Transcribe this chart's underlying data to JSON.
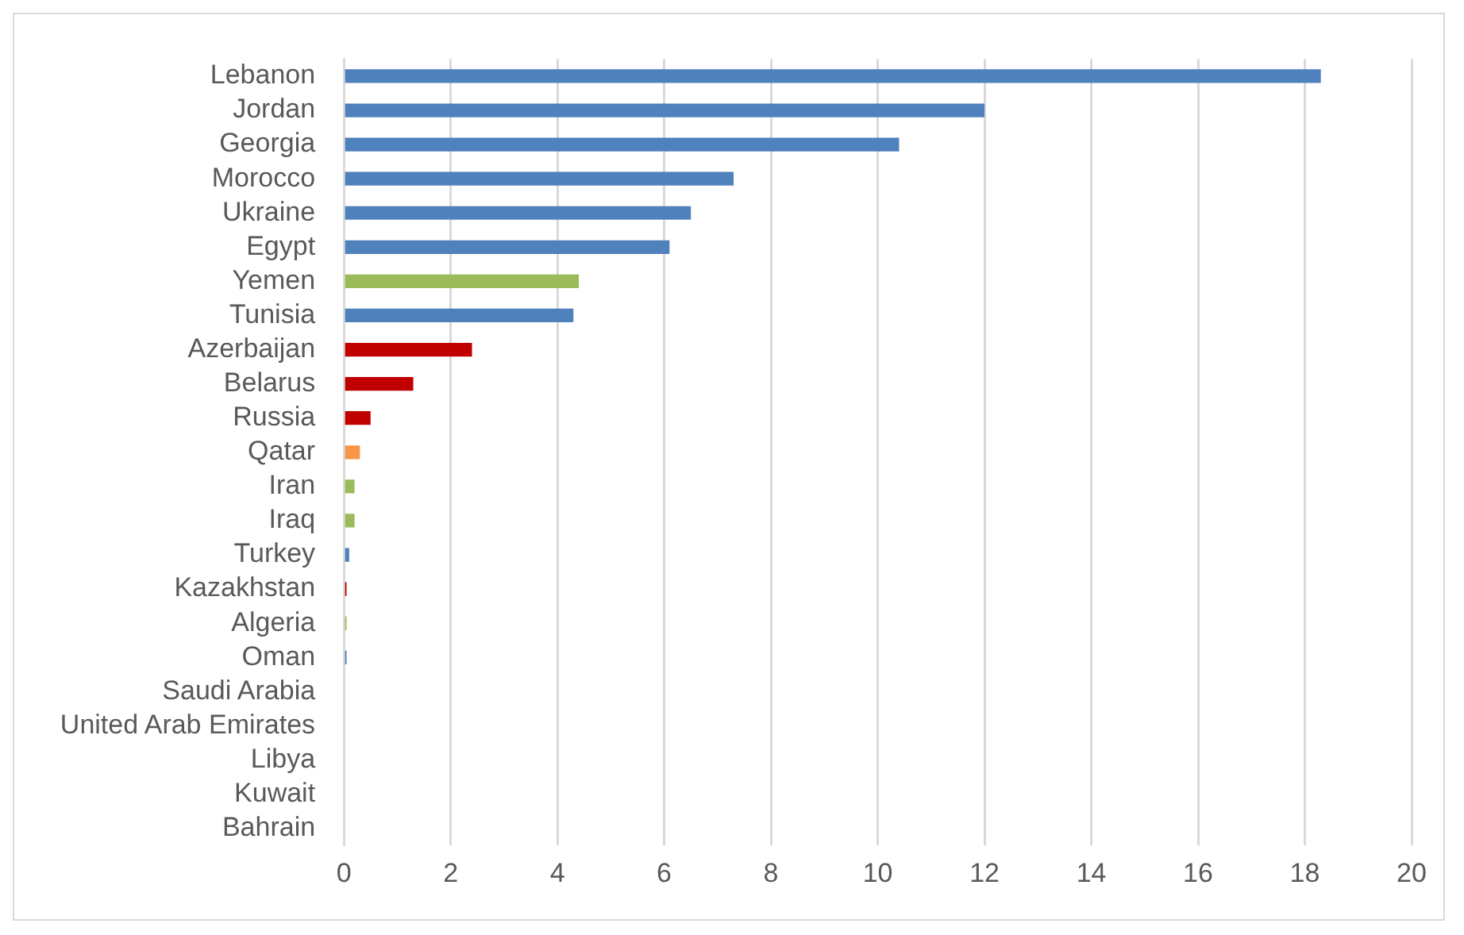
{
  "chart_data": {
    "type": "bar",
    "orientation": "horizontal",
    "categories": [
      "Lebanon",
      "Jordan",
      "Georgia",
      "Morocco",
      "Ukraine",
      "Egypt",
      "Yemen",
      "Tunisia",
      "Azerbaijan",
      "Belarus",
      "Russia",
      "Qatar",
      "Iran",
      "Iraq",
      "Turkey",
      "Kazakhstan",
      "Algeria",
      "Oman",
      "Saudi Arabia",
      "United Arab Emirates",
      "Libya",
      "Kuwait",
      "Bahrain"
    ],
    "values": [
      18.3,
      12,
      10.4,
      7.3,
      6.5,
      6.1,
      4.4,
      4.3,
      2.4,
      1.3,
      0.5,
      0.3,
      0.2,
      0.2,
      0.1,
      0.05,
      0.05,
      0.05,
      0,
      0,
      0,
      0,
      0
    ],
    "colors": [
      "#4f81bd",
      "#4f81bd",
      "#4f81bd",
      "#4f81bd",
      "#4f81bd",
      "#4f81bd",
      "#9bbb59",
      "#4f81bd",
      "#c00000",
      "#c00000",
      "#c00000",
      "#f79646",
      "#9bbb59",
      "#9bbb59",
      "#4f81bd",
      "#c00000",
      "#9bbb59",
      "#4f81bd",
      "#4f81bd",
      "#4f81bd",
      "#4f81bd",
      "#4f81bd",
      "#4f81bd"
    ],
    "xlim": [
      0,
      20
    ],
    "xticks": [
      0,
      2,
      4,
      6,
      8,
      10,
      12,
      14,
      16,
      18,
      20
    ],
    "grid": "x",
    "legend": false
  }
}
